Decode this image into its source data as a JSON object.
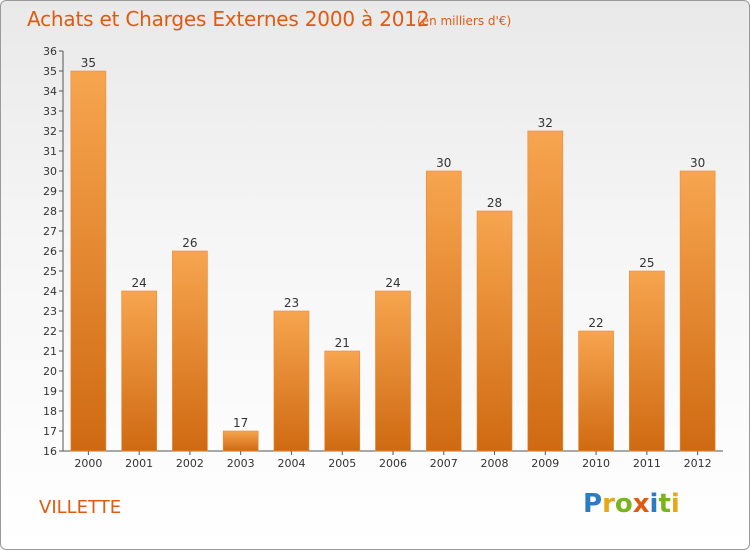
{
  "header": {
    "title": "Achats et Charges Externes 2000 à 2012",
    "unit": "(en milliers d'€)"
  },
  "commune": "VILLETTE",
  "logo": {
    "text": "Proxiti"
  },
  "colors": {
    "bar_light": "#f7a54f",
    "bar_dark": "#cf6a12",
    "text": "#333333",
    "accent": "#e05a10"
  },
  "chart_data": {
    "type": "bar",
    "title": "Achats et Charges Externes 2000 à 2012",
    "xlabel": "",
    "ylabel": "",
    "categories": [
      "2000",
      "2001",
      "2002",
      "2003",
      "2004",
      "2005",
      "2006",
      "2007",
      "2008",
      "2009",
      "2010",
      "2011",
      "2012"
    ],
    "values": [
      35,
      24,
      26,
      17,
      23,
      21,
      24,
      30,
      28,
      32,
      22,
      25,
      30
    ],
    "ylim": [
      16,
      36
    ],
    "yticks": [
      16,
      17,
      18,
      19,
      20,
      21,
      22,
      23,
      24,
      25,
      26,
      27,
      28,
      29,
      30,
      31,
      32,
      33,
      34,
      35,
      36
    ],
    "grid": false,
    "data_labels": true
  }
}
